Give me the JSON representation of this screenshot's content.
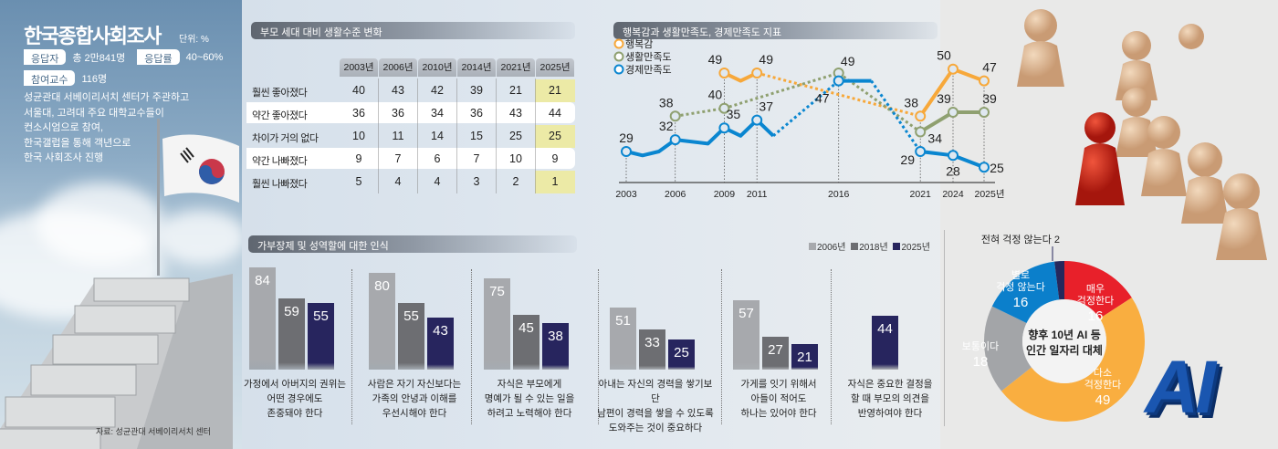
{
  "survey": {
    "title": "한국종합사회조사",
    "unit": "단위: %",
    "respondents_label": "응답자",
    "respondents_value": "총 2만841명",
    "response_rate_label": "응답률",
    "response_rate_value": "40~60%",
    "professors_label": "참여교수",
    "professors_value": "116명",
    "description": [
      "성균관대 서베이리서치 센터가 주관하고",
      "서울대, 고려대 주요 대학교수들이",
      "컨소시엄으로 참여,",
      "한국갤럽을 통해 객년으로",
      "한국 사회조사 진행"
    ],
    "source": "자료: 성균관대 서베이리서치 센터"
  },
  "chart_data": [
    {
      "type": "table",
      "title": "부모 세대 대비 생활수준 변화",
      "columns": [
        "2003년",
        "2006년",
        "2010년",
        "2014년",
        "2021년",
        "2025년"
      ],
      "highlight_column": "2025년",
      "highlight_color": "#eceaa6",
      "rows": [
        {
          "label": "훨씬 좋아졌다",
          "values": [
            40,
            43,
            42,
            39,
            21,
            21
          ]
        },
        {
          "label": "약간 좋아졌다",
          "values": [
            36,
            36,
            34,
            36,
            43,
            44
          ]
        },
        {
          "label": "차이가 거의 없다",
          "values": [
            10,
            11,
            14,
            15,
            25,
            25
          ]
        },
        {
          "label": "약간 나빠졌다",
          "values": [
            9,
            7,
            6,
            7,
            10,
            9
          ]
        },
        {
          "label": "훨씬 나빠졌다",
          "values": [
            5,
            4,
            4,
            3,
            2,
            1
          ]
        }
      ]
    },
    {
      "type": "line",
      "title": "행복감과 생활만족도, 경제만족도 지표",
      "x_ticks": [
        "2003",
        "2006",
        "2009",
        "2011",
        "2016",
        "2021",
        "2024",
        "2025년"
      ],
      "legend_placement": "top-left",
      "series": [
        {
          "name": "행복감",
          "color": "#f7a83a",
          "segments": [
            {
              "style": "solid",
              "points": [
                [
                  2009,
                  49
                ],
                [
                  2010,
                  47
                ],
                [
                  2011,
                  49
                ]
              ]
            },
            {
              "style": "dotted",
              "points": [
                [
                  2011,
                  49
                ],
                [
                  2021,
                  38
                ]
              ]
            },
            {
              "style": "solid",
              "points": [
                [
                  2021,
                  38
                ],
                [
                  2024,
                  50
                ],
                [
                  2025,
                  47
                ]
              ]
            }
          ],
          "labeled": [
            [
              2009,
              49
            ],
            [
              2011,
              49
            ],
            [
              2021,
              38
            ],
            [
              2024,
              50
            ],
            [
              2025,
              47
            ]
          ]
        },
        {
          "name": "생활만족도",
          "color": "#8fa070",
          "segments": [
            {
              "style": "dotted",
              "points": [
                [
                  2006,
                  38
                ],
                [
                  2009,
                  40
                ],
                [
                  2016,
                  49
                ],
                [
                  2021,
                  34
                ]
              ]
            },
            {
              "style": "solid",
              "points": [
                [
                  2021,
                  34
                ],
                [
                  2024,
                  39
                ],
                [
                  2025,
                  39
                ]
              ]
            }
          ],
          "labeled": [
            [
              2006,
              38
            ],
            [
              2009,
              40
            ],
            [
              2016,
              49
            ],
            [
              2021,
              34
            ],
            [
              2024,
              39
            ],
            [
              2025,
              39
            ]
          ]
        },
        {
          "name": "경제만족도",
          "color": "#0a86d0",
          "segments": [
            {
              "style": "solid",
              "points": [
                [
                  2003,
                  29
                ],
                [
                  2004,
                  28
                ],
                [
                  2005,
                  29
                ],
                [
                  2006,
                  32
                ],
                [
                  2008,
                  31
                ],
                [
                  2009,
                  35
                ],
                [
                  2010,
                  33
                ],
                [
                  2011,
                  37
                ],
                [
                  2012,
                  33
                ]
              ]
            },
            {
              "style": "dotted",
              "points": [
                [
                  2012,
                  33
                ],
                [
                  2016,
                  47
                ]
              ]
            },
            {
              "style": "solid",
              "points": [
                [
                  2016,
                  47
                ],
                [
                  2018,
                  47
                ]
              ]
            },
            {
              "style": "dotted",
              "points": [
                [
                  2018,
                  47
                ],
                [
                  2021,
                  29
                ]
              ]
            },
            {
              "style": "solid",
              "points": [
                [
                  2021,
                  29
                ],
                [
                  2024,
                  28
                ],
                [
                  2025,
                  25
                ]
              ]
            }
          ],
          "labeled": [
            [
              2003,
              29
            ],
            [
              2006,
              32
            ],
            [
              2009,
              35
            ],
            [
              2011,
              37
            ],
            [
              2016,
              47
            ],
            [
              2021,
              29
            ],
            [
              2024,
              28
            ],
            [
              2025,
              25
            ]
          ]
        }
      ]
    },
    {
      "type": "bar",
      "title": "가부장제 및 성역할에 대한 인식",
      "legend_placement": "top-right",
      "series_names": [
        "2006년",
        "2018년",
        "2025년"
      ],
      "series_colors": [
        "#a7a9ad",
        "#6d6e72",
        "#27255e"
      ],
      "groups": [
        {
          "caption": [
            "가정에서 아버지의 권위는",
            "어떤 경우에도",
            "존중돼야 한다"
          ],
          "values": [
            84,
            59,
            55
          ]
        },
        {
          "caption": [
            "사람은 자기 자신보다는",
            "가족의 안녕과 이해를",
            "우선시해야 한다"
          ],
          "values": [
            80,
            55,
            43
          ]
        },
        {
          "caption": [
            "자식은 부모에게",
            "명예가 될 수 있는 일을",
            "하려고 노력해야 한다"
          ],
          "values": [
            75,
            45,
            38
          ]
        },
        {
          "caption": [
            "아내는 자신의 경력을 쌓기보단",
            "남편이 경력을 쌓을 수 있도록",
            "도와주는 것이 중요하다"
          ],
          "values": [
            51,
            33,
            25
          ]
        },
        {
          "caption": [
            "가게를 잇기 위해서",
            "아들이 적어도",
            "하나는 있어야 한다"
          ],
          "values": [
            57,
            27,
            21
          ]
        },
        {
          "caption": [
            "자식은 중요한 결정을",
            "할 때 부모의 의견을",
            "반영하여야 한다"
          ],
          "values": [
            null,
            null,
            44
          ]
        }
      ]
    },
    {
      "type": "pie",
      "center_label": [
        "향후 10년 AI 등",
        "인간 일자리 대체"
      ],
      "slices": [
        {
          "label": "매우 걱정한다",
          "value": 16,
          "color": "#e8202a"
        },
        {
          "label": "다소 걱정한다",
          "value": 49,
          "color": "#f9ae40"
        },
        {
          "label": "보통이다",
          "value": 18,
          "color": "#a3a5a8"
        },
        {
          "label": "별로 걱정 않는다",
          "value": 16,
          "color": "#0b7fcb"
        },
        {
          "label": "전혀 걱정 않는다",
          "value": 2,
          "color": "#26285c"
        }
      ]
    }
  ],
  "decor": {
    "ai_logo": "AI"
  }
}
